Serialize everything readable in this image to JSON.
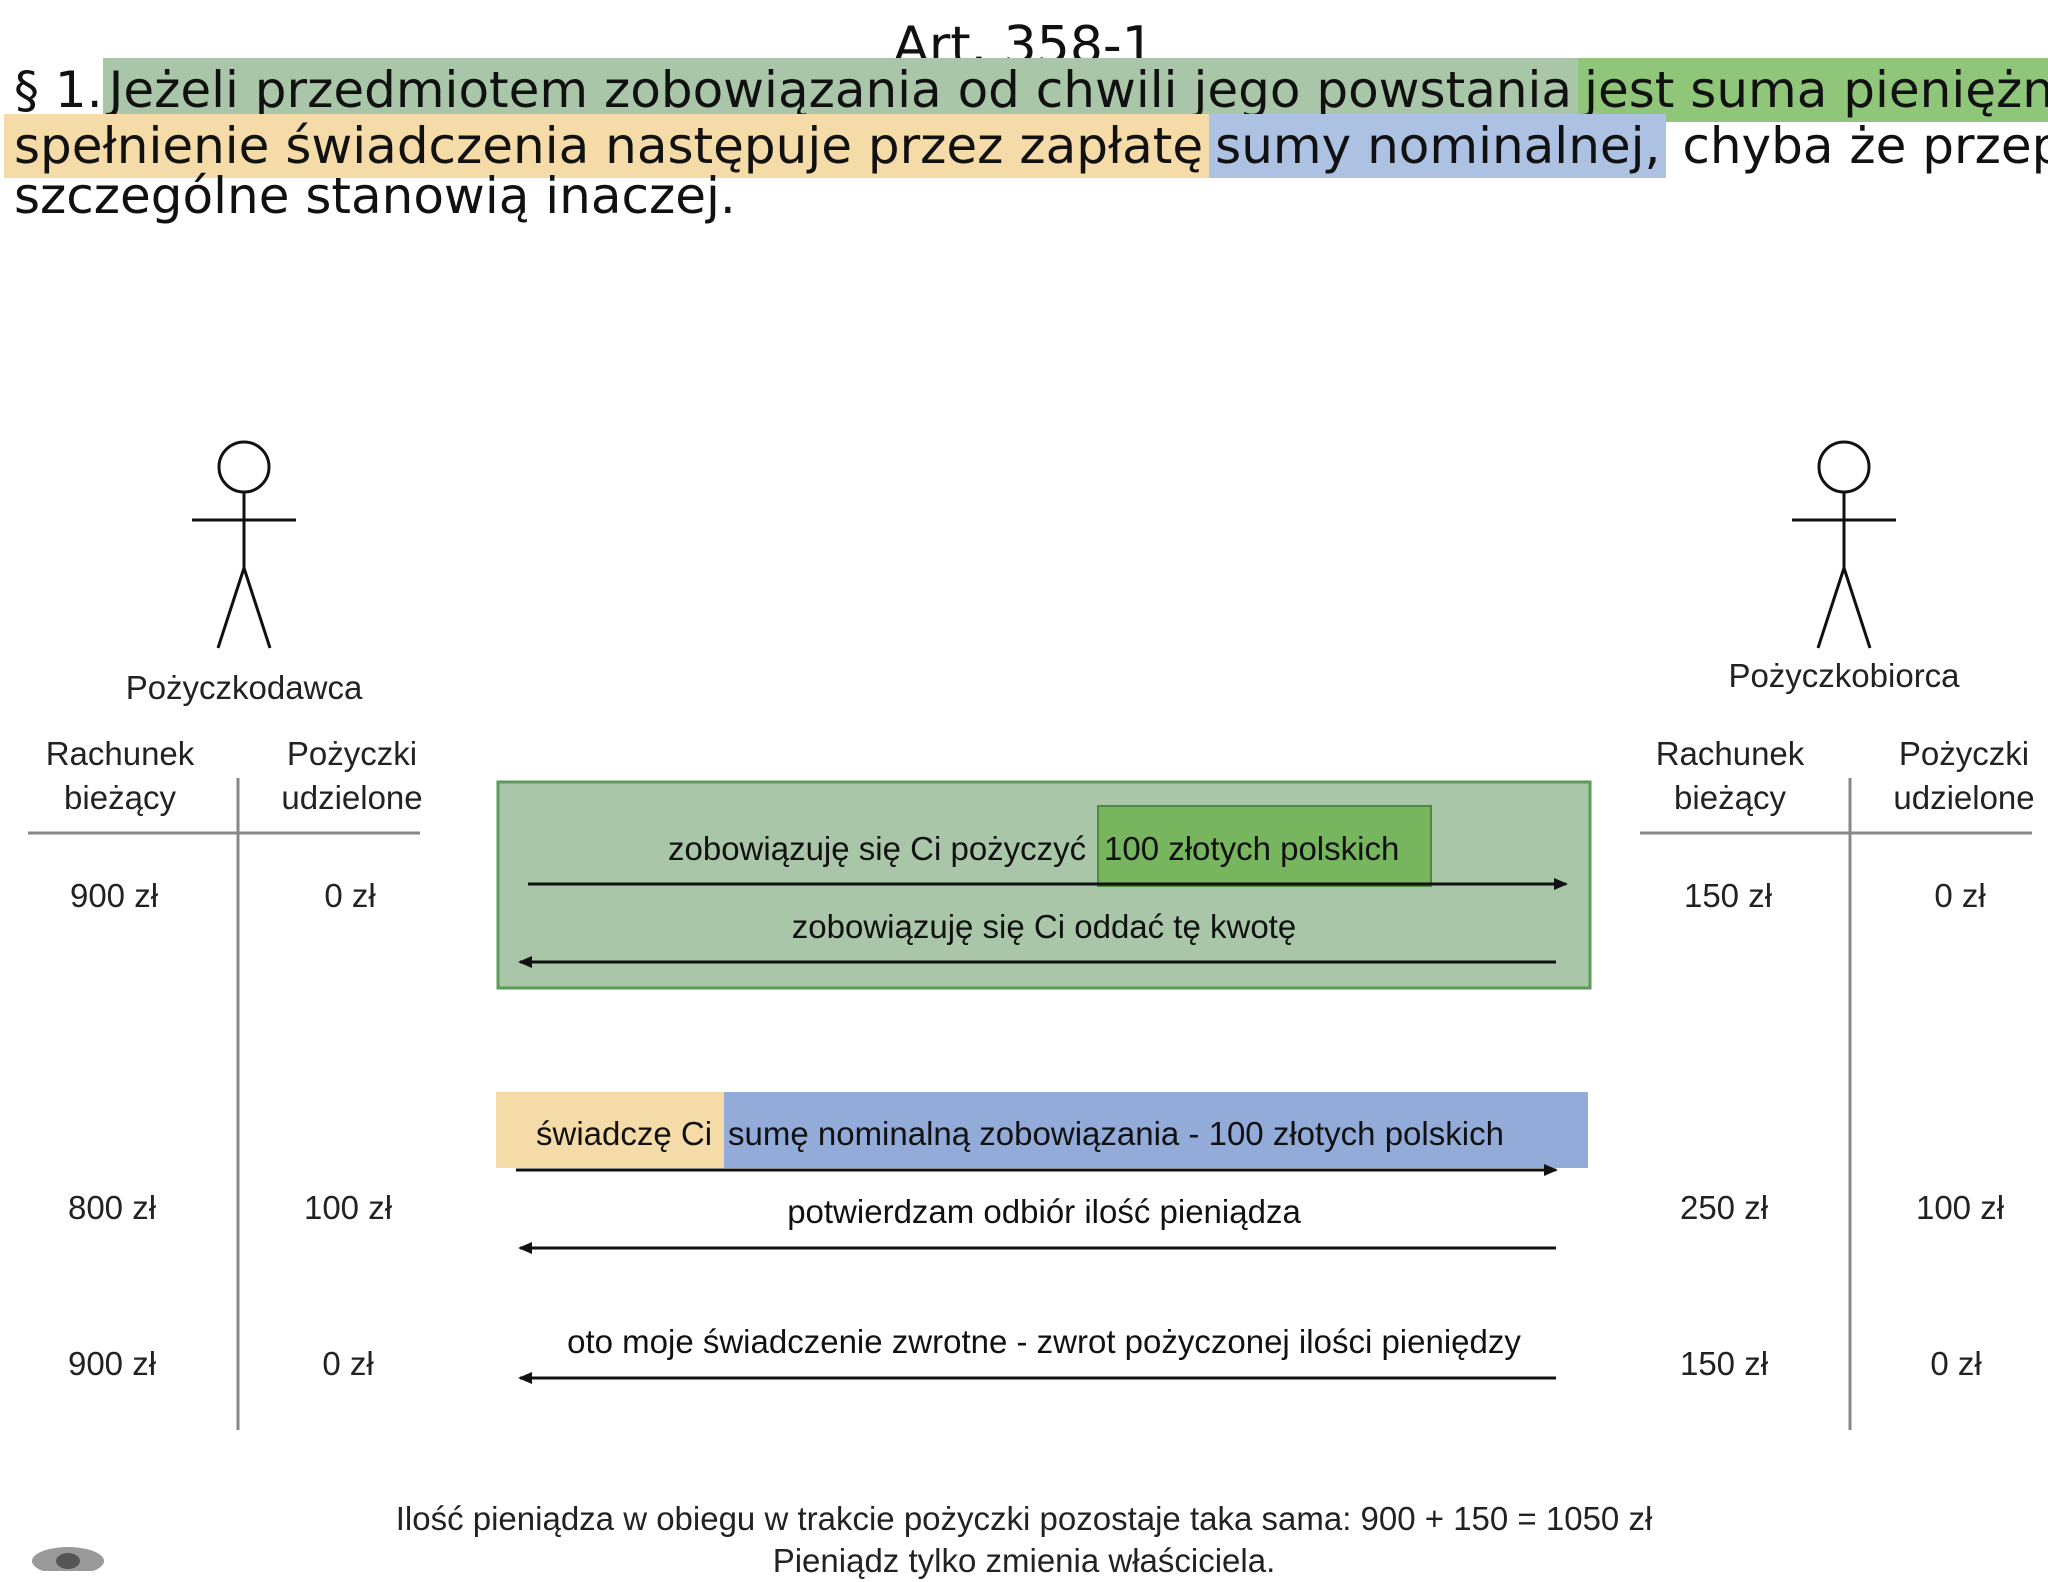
{
  "title": "Art. 358-1",
  "paragraph": {
    "marker": "§ 1.",
    "seg1": "Jeżeli przedmiotem zobowiązania od chwili jego powstania",
    "seg2": "jest suma pieniężna,",
    "seg3": "spełnienie świadczenia następuje przez zapłatę",
    "seg4": "sumy nominalnej,",
    "seg5": " chyba że przepisy",
    "seg6": "szczególne stanowią inaczej."
  },
  "lender": {
    "label": "Pożyczkodawca",
    "col1": [
      "Rachunek",
      "bieżący"
    ],
    "col2": [
      "Pożyczki",
      "udzielone"
    ],
    "rows": [
      {
        "account": "900 zł",
        "loans": "0 zł"
      },
      {
        "account": "800 zł",
        "loans": "100 zł"
      },
      {
        "account": "900 zł",
        "loans": "0 zł"
      }
    ]
  },
  "borrower": {
    "label": "Pożyczkobiorca",
    "col1": [
      "Rachunek",
      "bieżący"
    ],
    "col2": [
      "Pożyczki",
      "udzielone"
    ],
    "rows": [
      {
        "account": "150 zł",
        "loans": "0 zł"
      },
      {
        "account": "250 zł",
        "loans": "100 zł"
      },
      {
        "account": "150 zł",
        "loans": "0 zł"
      }
    ]
  },
  "messages": {
    "m1a": "zobowiązuję się Ci pożyczyć",
    "m1b": "100 złotych polskich",
    "m2": "zobowiązuję się Ci oddać tę kwotę",
    "m3a": "świadczę Ci",
    "m3b": "sumę nominalną zobowiązania - 100 złotych polskich",
    "m4": "potwierdzam odbiór ilość pieniądza",
    "m5": "oto moje świadczenie zwrotne - zwrot pożyczonej ilości pieniędzy"
  },
  "footer": {
    "line1": "Ilość pieniądza w obiegu w trakcie pożyczki pozostaje taka sama: 900 + 150 = 1050 zł",
    "line2": "Pieniądz tylko zmienia właściciela."
  },
  "colors": {
    "green_box": "#a9c7a8",
    "green_strong": "#78b55f",
    "orange": "#f4dba8",
    "blue": "#93abd8"
  }
}
